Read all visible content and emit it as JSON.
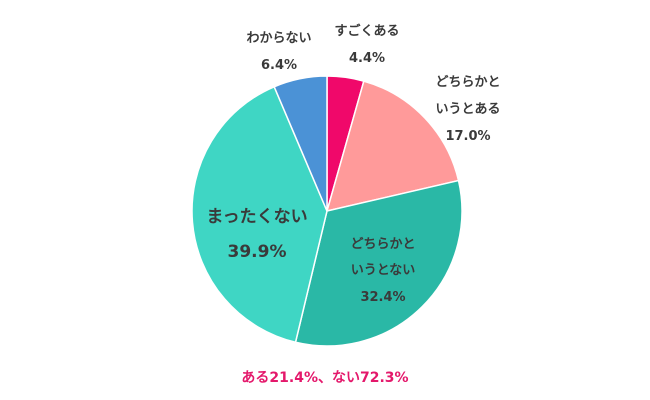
{
  "chart_data": {
    "type": "pie",
    "start_angle": "12 o'clock",
    "direction": "clockwise",
    "slices": [
      {
        "label_lines": [
          "すごくある"
        ],
        "value_text": "4.4%",
        "value": 4.4,
        "color": "#f0086a"
      },
      {
        "label_lines": [
          "どちらかと",
          "いうとある"
        ],
        "value_text": "17.0%",
        "value": 17.0,
        "color": "#ff9a9a"
      },
      {
        "label_lines": [
          "どちらかと",
          "いうとない"
        ],
        "value_text": "32.4%",
        "value": 32.4,
        "color": "#2ab8a6"
      },
      {
        "label_lines": [
          "まったくない"
        ],
        "value_text": "39.9%",
        "value": 39.9,
        "color": "#3fd6c4"
      },
      {
        "label_lines": [
          "わからない"
        ],
        "value_text": "6.4%",
        "value": 6.4,
        "color": "#4b92d6"
      }
    ],
    "summary": "ある21.4%、ない72.3%"
  }
}
